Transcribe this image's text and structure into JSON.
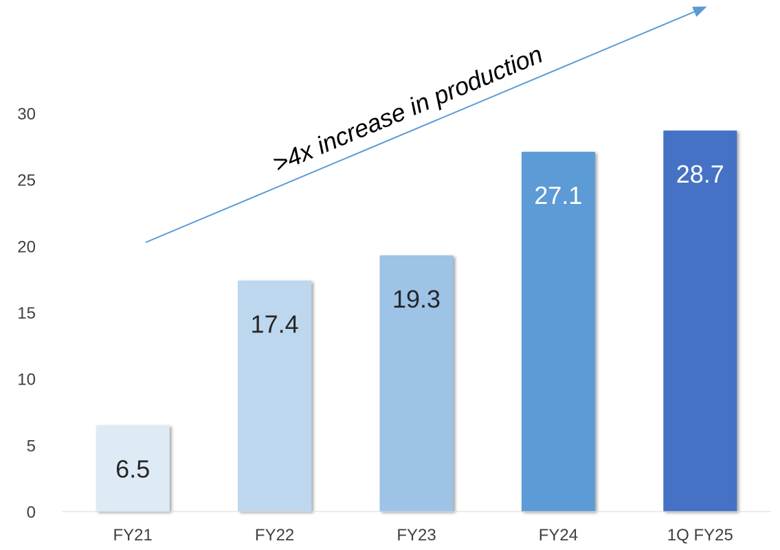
{
  "chart_data": {
    "type": "bar",
    "categories": [
      "FY21",
      "FY22",
      "FY23",
      "FY24",
      "1Q FY25"
    ],
    "values": [
      6.5,
      17.4,
      19.3,
      27.1,
      28.7
    ],
    "value_labels": [
      "6.5",
      "17.4",
      "19.3",
      "27.1",
      "28.7"
    ],
    "bar_colors": [
      "#DEEAF6",
      "#BDD7EE",
      "#9DC3E6",
      "#5B9BD5",
      "#4472C4"
    ],
    "label_colors": [
      "#262626",
      "#262626",
      "#262626",
      "#FFFFFF",
      "#FFFFFF"
    ],
    "title": "",
    "xlabel": "",
    "ylabel": "",
    "ylim": [
      0,
      30
    ],
    "y_ticks": [
      0,
      5,
      10,
      15,
      20,
      25,
      30
    ],
    "grid": false,
    "legend": "none",
    "annotation": {
      "text": ">4x increase in production",
      "arrow_color": "#5B9BD5"
    }
  }
}
